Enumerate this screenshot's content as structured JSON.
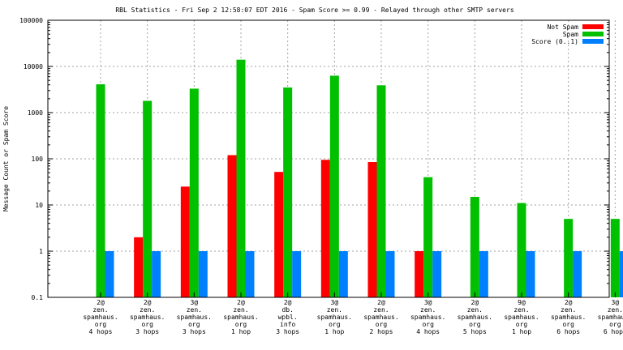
{
  "chart_data": {
    "type": "bar",
    "title": "RBL Statistics - Fri Sep  2 12:58:07 EDT 2016 - Spam Score >= 0.99 - Relayed through other SMTP servers",
    "ylabel": "Message Count or Spam Score",
    "xlabel": "",
    "yscale": "log",
    "ylim": [
      0.1,
      100000
    ],
    "yticks": [
      "0.1",
      "1",
      "10",
      "100",
      "1000",
      "10000",
      "100000"
    ],
    "grid": true,
    "legend_position": "top-right",
    "categories": [
      [
        "2@",
        "zen.",
        "spamhaus.",
        "org",
        "4 hops"
      ],
      [
        "2@",
        "zen.",
        "spamhaus.",
        "org",
        "3 hops"
      ],
      [
        "3@",
        "zen.",
        "spamhaus.",
        "org",
        "3 hops"
      ],
      [
        "2@",
        "zen.",
        "spamhaus.",
        "org",
        "1 hop"
      ],
      [
        "2@",
        "db.",
        "wpbl.",
        "info",
        "3 hops"
      ],
      [
        "3@",
        "zen.",
        "spamhaus.",
        "org",
        "1 hop"
      ],
      [
        "2@",
        "zen.",
        "spamhaus.",
        "org",
        "2 hops"
      ],
      [
        "3@",
        "zen.",
        "spamhaus.",
        "org",
        "4 hops"
      ],
      [
        "2@",
        "zen.",
        "spamhaus.",
        "org",
        "5 hops"
      ],
      [
        "9@",
        "zen.",
        "spamhaus.",
        "org",
        "1 hop"
      ],
      [
        "2@",
        "zen.",
        "spamhaus.",
        "org",
        "6 hops"
      ],
      [
        "3@",
        "zen.",
        "spamhaus.",
        "org",
        "6 hops"
      ]
    ],
    "series": [
      {
        "name": "Not Spam",
        "color": "#ff0000",
        "values": [
          null,
          2,
          25,
          120,
          52,
          95,
          85,
          1,
          null,
          null,
          null,
          null
        ]
      },
      {
        "name": "Spam",
        "color": "#00c000",
        "values": [
          4100,
          1800,
          3300,
          14000,
          3500,
          6300,
          3900,
          40,
          15,
          11,
          5,
          5
        ]
      },
      {
        "name": "Score (0..1)",
        "color": "#0080ff",
        "values": [
          1,
          1,
          1,
          1,
          1,
          1,
          1,
          1,
          1,
          1,
          1,
          1
        ]
      }
    ]
  }
}
